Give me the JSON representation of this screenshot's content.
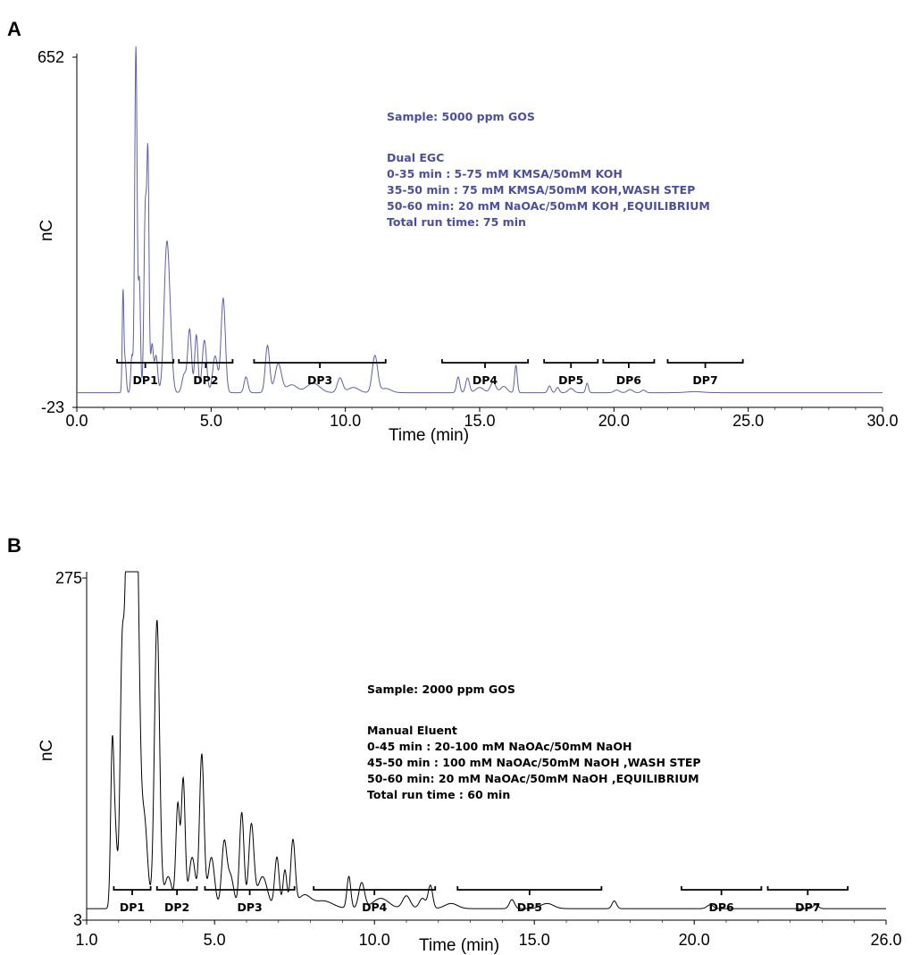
{
  "colors": {
    "panel_a_trace": "#5b5fb0",
    "panel_a_text": "#4a4fa3",
    "panel_b_trace": "#000000"
  },
  "chart_data": [
    {
      "type": "line",
      "panel": "A",
      "title": "",
      "xlabel": "Time (min)",
      "ylabel": "nC",
      "xlim": [
        0.0,
        30.0
      ],
      "ylim": [
        -23,
        652
      ],
      "y_ticks": [
        "652",
        "-23"
      ],
      "x_ticks": [
        "0.0",
        "5.0",
        "10.0",
        "15.0",
        "20.0",
        "25.0",
        "30.0"
      ],
      "grid": false,
      "baseline": 5,
      "peaks": [
        {
          "t": 1.72,
          "h": 190,
          "w": 0.03
        },
        {
          "t": 1.8,
          "h": 60,
          "w": 0.04
        },
        {
          "t": 2.05,
          "h": 70,
          "w": 0.04
        },
        {
          "t": 2.2,
          "h": 660,
          "w": 0.045
        },
        {
          "t": 2.33,
          "h": 210,
          "w": 0.04
        },
        {
          "t": 2.55,
          "h": 350,
          "w": 0.05
        },
        {
          "t": 2.65,
          "h": 420,
          "w": 0.04
        },
        {
          "t": 2.8,
          "h": 90,
          "w": 0.05
        },
        {
          "t": 2.95,
          "h": 70,
          "w": 0.06
        },
        {
          "t": 3.35,
          "h": 280,
          "w": 0.1
        },
        {
          "t": 3.5,
          "h": 50,
          "w": 0.08
        },
        {
          "t": 4.0,
          "h": 35,
          "w": 0.08
        },
        {
          "t": 4.2,
          "h": 120,
          "w": 0.07
        },
        {
          "t": 4.45,
          "h": 110,
          "w": 0.06
        },
        {
          "t": 4.75,
          "h": 100,
          "w": 0.08
        },
        {
          "t": 5.15,
          "h": 70,
          "w": 0.09
        },
        {
          "t": 5.45,
          "h": 180,
          "w": 0.08
        },
        {
          "t": 6.3,
          "h": 30,
          "w": 0.07
        },
        {
          "t": 7.1,
          "h": 90,
          "w": 0.08
        },
        {
          "t": 7.5,
          "h": 55,
          "w": 0.12
        },
        {
          "t": 8.0,
          "h": 15,
          "w": 0.2
        },
        {
          "t": 8.8,
          "h": 18,
          "w": 0.25
        },
        {
          "t": 9.8,
          "h": 28,
          "w": 0.1
        },
        {
          "t": 10.3,
          "h": 10,
          "w": 0.2
        },
        {
          "t": 11.1,
          "h": 70,
          "w": 0.1
        },
        {
          "t": 11.5,
          "h": 8,
          "w": 0.2
        },
        {
          "t": 14.2,
          "h": 30,
          "w": 0.06
        },
        {
          "t": 14.55,
          "h": 28,
          "w": 0.07
        },
        {
          "t": 15.0,
          "h": 10,
          "w": 0.15
        },
        {
          "t": 15.5,
          "h": 20,
          "w": 0.1
        },
        {
          "t": 15.9,
          "h": 12,
          "w": 0.12
        },
        {
          "t": 16.35,
          "h": 52,
          "w": 0.05
        },
        {
          "t": 17.6,
          "h": 13,
          "w": 0.06
        },
        {
          "t": 17.9,
          "h": 10,
          "w": 0.06
        },
        {
          "t": 18.4,
          "h": 8,
          "w": 0.1
        },
        {
          "t": 19.0,
          "h": 18,
          "w": 0.05
        },
        {
          "t": 20.1,
          "h": 5,
          "w": 0.1
        },
        {
          "t": 20.6,
          "h": 6,
          "w": 0.1
        },
        {
          "t": 21.1,
          "h": 5,
          "w": 0.08
        },
        {
          "t": 23.0,
          "h": 2,
          "w": 0.3
        }
      ],
      "dp_ranges": [
        {
          "label": "DP1",
          "start": 1.5,
          "end": 3.6
        },
        {
          "label": "DP2",
          "start": 3.8,
          "end": 5.8
        },
        {
          "label": "DP3",
          "start": 6.6,
          "end": 11.5
        },
        {
          "label": "DP4",
          "start": 13.6,
          "end": 16.8
        },
        {
          "label": "DP5",
          "start": 17.4,
          "end": 19.4
        },
        {
          "label": "DP6",
          "start": 19.6,
          "end": 21.5
        },
        {
          "label": "DP7",
          "start": 22.0,
          "end": 24.8
        }
      ],
      "annotations": [
        "Sample: 5000 ppm GOS",
        "Dual EGC",
        "0-35 min : 5-75 mM KMSA/50mM KOH",
        "35-50 min : 75 mM KMSA/50mM KOH,WASH STEP",
        "50-60 min: 20 mM NaOAc/50mM KOH ,EQUILIBRIUM",
        "Total run time: 75 min"
      ]
    },
    {
      "type": "line",
      "panel": "B",
      "title": "",
      "xlabel": "Time (min)",
      "ylabel": "nC",
      "xlim": [
        1.0,
        26.0
      ],
      "ylim": [
        3,
        275
      ],
      "y_ticks": [
        "275",
        "3"
      ],
      "x_ticks": [
        "1.0",
        "5.0",
        "10.0",
        "15.0",
        "20.0",
        "26.0"
      ],
      "grid": false,
      "baseline": 12,
      "clip_max": 275,
      "peaks": [
        {
          "t": 1.8,
          "h": 120,
          "w": 0.05
        },
        {
          "t": 1.9,
          "h": 55,
          "w": 0.06
        },
        {
          "t": 2.1,
          "h": 160,
          "w": 0.06
        },
        {
          "t": 2.3,
          "h": 350,
          "w": 0.1
        },
        {
          "t": 2.55,
          "h": 320,
          "w": 0.09
        },
        {
          "t": 2.8,
          "h": 70,
          "w": 0.1
        },
        {
          "t": 3.2,
          "h": 225,
          "w": 0.08
        },
        {
          "t": 3.55,
          "h": 25,
          "w": 0.12
        },
        {
          "t": 3.85,
          "h": 80,
          "w": 0.06
        },
        {
          "t": 4.02,
          "h": 100,
          "w": 0.06
        },
        {
          "t": 4.3,
          "h": 40,
          "w": 0.1
        },
        {
          "t": 4.6,
          "h": 120,
          "w": 0.07
        },
        {
          "t": 4.9,
          "h": 40,
          "w": 0.1
        },
        {
          "t": 5.3,
          "h": 50,
          "w": 0.08
        },
        {
          "t": 5.5,
          "h": 25,
          "w": 0.1
        },
        {
          "t": 5.85,
          "h": 75,
          "w": 0.07
        },
        {
          "t": 6.15,
          "h": 65,
          "w": 0.08
        },
        {
          "t": 6.5,
          "h": 25,
          "w": 0.15
        },
        {
          "t": 6.95,
          "h": 40,
          "w": 0.07
        },
        {
          "t": 7.2,
          "h": 30,
          "w": 0.06
        },
        {
          "t": 7.45,
          "h": 52,
          "w": 0.07
        },
        {
          "t": 7.8,
          "h": 10,
          "w": 0.2
        },
        {
          "t": 8.4,
          "h": 6,
          "w": 0.3
        },
        {
          "t": 9.2,
          "h": 25,
          "w": 0.06
        },
        {
          "t": 9.6,
          "h": 20,
          "w": 0.09
        },
        {
          "t": 10.2,
          "h": 8,
          "w": 0.25
        },
        {
          "t": 11.0,
          "h": 10,
          "w": 0.12
        },
        {
          "t": 11.5,
          "h": 8,
          "w": 0.1
        },
        {
          "t": 11.75,
          "h": 18,
          "w": 0.07
        },
        {
          "t": 12.4,
          "h": 4,
          "w": 0.2
        },
        {
          "t": 14.3,
          "h": 7,
          "w": 0.08
        },
        {
          "t": 15.4,
          "h": 4,
          "w": 0.2
        },
        {
          "t": 17.5,
          "h": 6,
          "w": 0.07
        },
        {
          "t": 20.5,
          "h": 3,
          "w": 0.1
        },
        {
          "t": 23.8,
          "h": 3,
          "w": 0.08
        }
      ],
      "dp_ranges": [
        {
          "label": "DP1",
          "start": 1.85,
          "end": 3.0
        },
        {
          "label": "DP2",
          "start": 3.2,
          "end": 4.45
        },
        {
          "label": "DP3",
          "start": 4.7,
          "end": 7.5
        },
        {
          "label": "DP4",
          "start": 8.1,
          "end": 11.9
        },
        {
          "label": "DP5",
          "start": 12.6,
          "end": 17.1
        },
        {
          "label": "DP6",
          "start": 19.6,
          "end": 22.1
        },
        {
          "label": "DP7",
          "start": 22.3,
          "end": 24.8
        }
      ],
      "annotations": [
        "Sample: 2000 ppm GOS",
        "Manual Eluent",
        "0-45 min : 20-100 mM NaOAc/50mM NaOH",
        "45-50 min : 100 mM NaOAc/50mM NaOH ,WASH STEP",
        "50-60 min: 20 mM NaOAc/50mM NaOH ,EQUILIBRIUM",
        "Total run time : 60 min"
      ]
    }
  ],
  "panel_letters": [
    "A",
    "B"
  ]
}
